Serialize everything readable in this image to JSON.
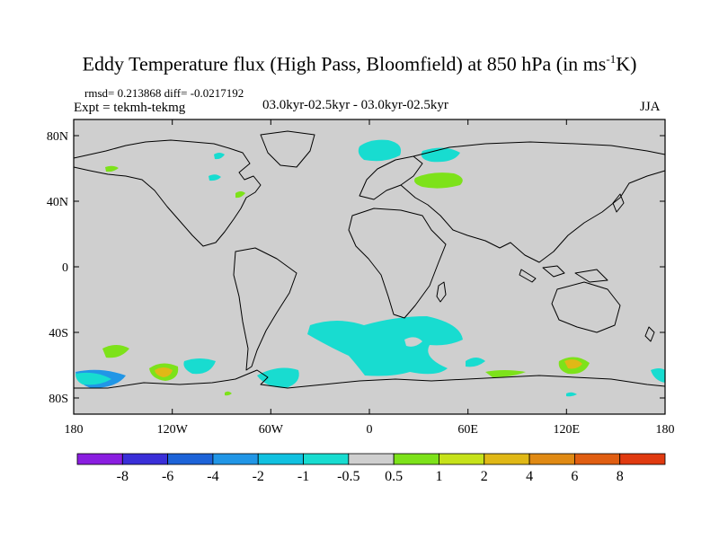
{
  "header": {
    "title_main": "Eddy Temperature flux (High Pass, Bloomfield) at 850 hPa (in ms",
    "title_sup": "-1",
    "title_tail": "K)",
    "rmsd_line": "rmsd= 0.213868 diff= -0.0217192",
    "expt_line": "Expt = tekmh-tekmg",
    "period": "03.0kyr-02.5kyr - 03.0kyr-02.5kyr",
    "season": "JJA"
  },
  "axes": {
    "lat_labels": [
      "80N",
      "40N",
      "0",
      "40S",
      "80S"
    ],
    "lon_labels": [
      "180",
      "120W",
      "60W",
      "0",
      "60E",
      "120E",
      "180"
    ]
  },
  "colorbar": {
    "colors": [
      "#8a1ee0",
      "#3a2fd8",
      "#1d63d8",
      "#2196e6",
      "#11c1e0",
      "#18dcd0",
      "#cfcfcf",
      "#7de21a",
      "#c6e21a",
      "#e0b816",
      "#e08a14",
      "#e05e12",
      "#e03a10"
    ],
    "labels": [
      "-8",
      "-6",
      "-4",
      "-2",
      "-1",
      "-0.5",
      "0.5",
      "1",
      "2",
      "4",
      "6",
      "8"
    ]
  },
  "colors": {
    "ocean_land": "#cfcfcf",
    "cyan": "#18dcd0",
    "green": "#7de21a",
    "orange": "#e0b816",
    "blue": "#2196e6"
  }
}
